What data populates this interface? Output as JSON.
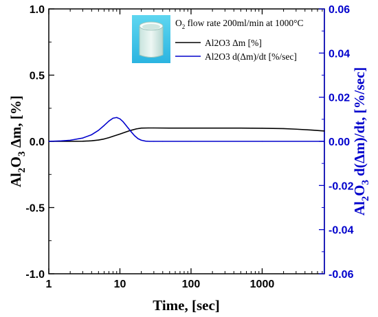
{
  "chart_data": {
    "type": "line",
    "title": "",
    "x_axis": {
      "label": "Time, [sec]",
      "scale": "log",
      "range": [
        1,
        7500
      ],
      "ticks": [
        1,
        10,
        100,
        1000
      ],
      "tick_labels": [
        "1",
        "10",
        "100",
        "1000"
      ]
    },
    "y_left": {
      "label_parts": [
        "Al",
        "2",
        "O",
        "3",
        " Δm, [%]"
      ],
      "range": [
        -1.0,
        1.0
      ],
      "ticks": [
        -1.0,
        -0.5,
        0.0,
        0.5,
        1.0
      ],
      "tick_labels": [
        "-1.0",
        "-0.5",
        "0.0",
        "0.5",
        "1.0"
      ],
      "color": "#000000"
    },
    "y_right": {
      "label_parts": [
        "Al",
        "2",
        "O",
        "3",
        " d(Δm)/dt, [%/sec]"
      ],
      "range": [
        -0.06,
        0.06
      ],
      "ticks": [
        -0.06,
        -0.04,
        -0.02,
        0.0,
        0.02,
        0.04,
        0.06
      ],
      "tick_labels": [
        "-0.06",
        "-0.04",
        "-0.02",
        "0.00",
        "0.02",
        "0.04",
        "0.06"
      ],
      "color": "#0000cc"
    },
    "legend": {
      "position": "top-right",
      "title_parts": [
        "O",
        "2",
        " flow rate 200ml/min at 1000°C"
      ],
      "image": "alumina-crucible-photo"
    },
    "series": [
      {
        "name": "Al2O3 Δm [%]",
        "axis": "left",
        "color": "#000000",
        "x": [
          1,
          2,
          3,
          4,
          5,
          6,
          7,
          8,
          10,
          12,
          14,
          17,
          20,
          25,
          30,
          50,
          100,
          200,
          500,
          1000,
          2000,
          3000,
          5000,
          7500
        ],
        "y": [
          0.0,
          0.0,
          0.001,
          0.004,
          0.01,
          0.018,
          0.028,
          0.038,
          0.055,
          0.07,
          0.082,
          0.094,
          0.1,
          0.101,
          0.101,
          0.1,
          0.1,
          0.1,
          0.1,
          0.099,
          0.096,
          0.092,
          0.085,
          0.078
        ]
      },
      {
        "name": "Al2O3 d(Δm)/dt [%/sec]",
        "axis": "right",
        "color": "#0000cc",
        "x": [
          1,
          1.5,
          2,
          3,
          4,
          5,
          6,
          7,
          8,
          9,
          10,
          11,
          12,
          14,
          16,
          18,
          20,
          23,
          26,
          30,
          40,
          100,
          1000,
          7500
        ],
        "y": [
          0.0,
          0.0002,
          0.0005,
          0.0015,
          0.003,
          0.005,
          0.0072,
          0.0092,
          0.0105,
          0.0108,
          0.0102,
          0.009,
          0.0075,
          0.0048,
          0.0026,
          0.0012,
          0.0005,
          0.0001,
          0.0,
          0.0,
          0.0,
          0.0,
          0.0,
          0.0
        ]
      }
    ]
  }
}
